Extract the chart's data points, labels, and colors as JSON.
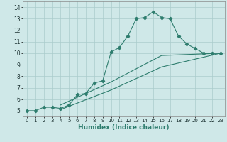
{
  "xlabel": "Humidex (Indice chaleur)",
  "ylabel": "",
  "bg_color": "#cfe8e8",
  "grid_color": "#aacccc",
  "line_color": "#2e7d6e",
  "xlim": [
    -0.5,
    23.5
  ],
  "ylim": [
    4.5,
    14.5
  ],
  "xticks": [
    0,
    1,
    2,
    3,
    4,
    5,
    6,
    7,
    8,
    9,
    10,
    11,
    12,
    13,
    14,
    15,
    16,
    17,
    18,
    19,
    20,
    21,
    22,
    23
  ],
  "yticks": [
    5,
    6,
    7,
    8,
    9,
    10,
    11,
    12,
    13,
    14
  ],
  "curve1_x": [
    0,
    1,
    2,
    3,
    4,
    5,
    6,
    7,
    8,
    9,
    10,
    11,
    12,
    13,
    14,
    15,
    16,
    17,
    18,
    19,
    20,
    21,
    22,
    23
  ],
  "curve1_y": [
    5.0,
    5.0,
    5.3,
    5.3,
    5.2,
    5.5,
    6.4,
    6.5,
    7.4,
    7.6,
    10.1,
    10.5,
    11.5,
    13.0,
    13.1,
    13.6,
    13.1,
    13.0,
    11.5,
    10.8,
    10.4,
    10.0,
    10.0,
    10.0
  ],
  "curve2_x": [
    0,
    23
  ],
  "curve2_y": [
    5.0,
    10.0
  ],
  "curve3_x": [
    0,
    23
  ],
  "curve3_y": [
    5.0,
    10.0
  ],
  "curve2_points_x": [
    4,
    10,
    16,
    23
  ],
  "curve2_points_y": [
    5.5,
    7.5,
    9.8,
    10.0
  ],
  "curve3_points_x": [
    4,
    10,
    16,
    23
  ],
  "curve3_points_y": [
    5.1,
    6.8,
    8.8,
    10.0
  ]
}
